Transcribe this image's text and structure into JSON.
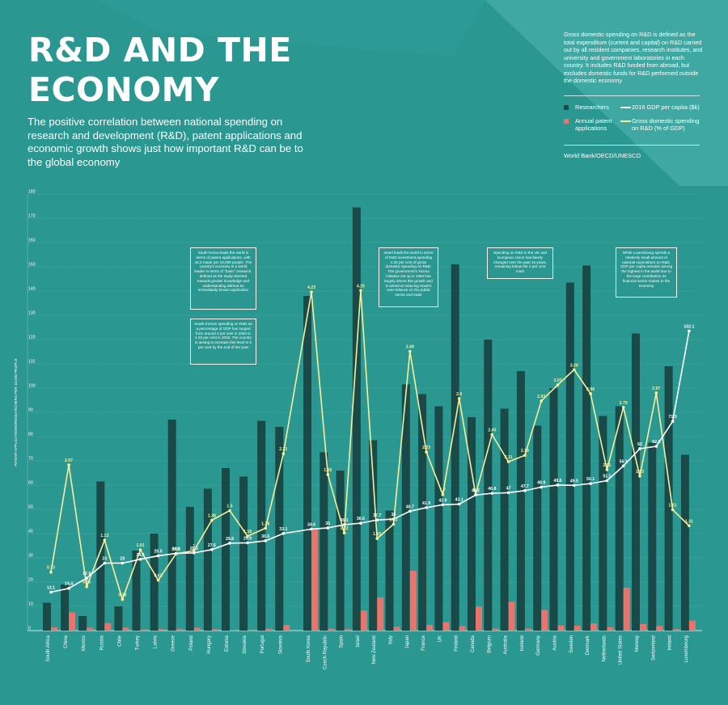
{
  "title": "R&D AND THE ECONOMY",
  "subtitle": "The positive correlation between national spending on research and development (R&D), patent applications and economic growth shows just how important R&D can be to the global economy",
  "definition": "Gross domestic spending on R&D is defined as the total expenditure (current and capital) on R&D carried out by all resident companies, research institutes, and university and government laboratories in each country. It includes R&D funded from abroad, but excludes domestic funds for R&D performed outside the domestic economy",
  "legend": {
    "researchers": "Researchers",
    "patents": "Annual patent applications",
    "gdp": "2016 GDP per capita ($k)",
    "rd": "Gross domestic spending on R&D (% of GDP)"
  },
  "source": "World Bank/OECD/UNESCO",
  "annotations": {
    "south_korea_patents": "South Korea leads the world in terms of patent applications, with 42.2 made per 10,000 people. The country's economy is a world leader in terms of \"basic\" research, defined as the study directed towards greater knowledge and understanding without an immediately known application",
    "south_korea_spending": "South Korean spending on R&D as a percentage of GDP has surged from around 2 per cent in 2000 to 4.23 per cent in 2015. The country is aiming to increase this level to 5 per cent by the end of the year",
    "israel": "Israel leads the world in terms of R&D investment,spending 4.25 per cent of gross domestic spending on R&D. The government's Yozma initiative set up in 1993 has largely driven this growth and is aimed at reducing Israel's over-reliance on the public sector and trade",
    "uk_eu": "Spending on R&D in the UK and European Union has barely changed over the past 15 years, remaining below the 2 per cent mark",
    "luxembourg": "While Luxembourg spends a relatively small amount of national expenditure on R&D, GDP per capita remains among the highest in the world due to the large contribution its financial sector makes to the economy"
  },
  "colors": {
    "background": "#2a9791",
    "researchers": "#1a4a47",
    "patents": "#e8746d",
    "gdp": "#ffffff",
    "rd": "#f7ef9b"
  },
  "chart_data": {
    "type": "bar",
    "ylabel": "PATENT APPLICATIONS/RESEARCHERS PER 10,000 PEOPLE",
    "ylim": [
      0,
      180
    ],
    "yticks": [
      0,
      10,
      20,
      30,
      40,
      50,
      60,
      70,
      80,
      90,
      100,
      110,
      120,
      130,
      140,
      150,
      160,
      170,
      180
    ],
    "categories": [
      "South Africa",
      "China",
      "Mexico",
      "Russia",
      "Chile",
      "Turkey",
      "Latvia",
      "Greece",
      "Poland",
      "Hungary",
      "Estonia",
      "Slovakia",
      "Portugal",
      "Slovenia",
      "South Korea",
      "Czech Republic",
      "Spain",
      "Israel",
      "New Zealand",
      "Italy",
      "Japan",
      "France",
      "UK",
      "Finland",
      "Canada",
      "Belgium",
      "Australia",
      "Iceland",
      "Germany",
      "Austria",
      "Sweden",
      "Denmark",
      "Netherlands",
      "United States",
      "Norway",
      "Switzerland",
      "Ireland",
      "Luxembourg"
    ],
    "series": [
      {
        "name": "Researchers",
        "values": [
          11.5,
          19,
          6,
          61.5,
          10,
          33,
          40,
          87,
          51,
          58.5,
          67,
          63.5,
          86.5,
          84,
          138,
          73.5,
          66,
          174.5,
          78.5,
          49.5,
          101.5,
          97.5,
          92.5,
          151,
          88,
          120,
          91.5,
          107,
          84.5,
          100,
          143.5,
          150.5,
          88.5,
          92.5,
          122.5,
          77.5,
          109,
          72.5
        ]
      },
      {
        "name": "Annual patent applications",
        "values": [
          1.3,
          7.5,
          1.2,
          3.1,
          1.2,
          0.5,
          0.7,
          0.7,
          1.2,
          0.6,
          0.3,
          0.4,
          0.8,
          2.3,
          42.2,
          0.8,
          0.6,
          8.3,
          13.7,
          1.6,
          24.7,
          2.3,
          3.5,
          1.8,
          9.8,
          0.9,
          11.9,
          0.8,
          8.5,
          2.1,
          2,
          3,
          1.4,
          17.7,
          2.7,
          1.9,
          0.6,
          4.1
        ]
      },
      {
        "name": "2016 GDP per capita ($k)",
        "values": [
          13.1,
          14.4,
          17.9,
          23,
          23,
          24.3,
          25.5,
          26.3,
          26.5,
          27.6,
          29.8,
          29.9,
          30.6,
          33.1,
          34.6,
          35,
          36.1,
          36.6,
          37.7,
          38,
          40.7,
          41.9,
          42.9,
          43.1,
          46.2,
          46.8,
          47,
          47.7,
          48.9,
          49.6,
          49.5,
          50.1,
          51.1,
          56.1,
          62,
          62.8,
          71.3,
          102.1
        ]
      },
      {
        "name": "Gross domestic spending on R&D (% of GDP)",
        "values": [
          0.73,
          2.07,
          0.55,
          1.13,
          0.39,
          1.01,
          0.63,
          0.96,
          1,
          1.38,
          1.5,
          1.18,
          1.28,
          2.21,
          4.23,
          1.95,
          1.22,
          4.25,
          1.15,
          1.33,
          3.49,
          2.23,
          1.7,
          2.9,
          1.7,
          2.45,
          2.11,
          2.19,
          2.87,
          3.07,
          3.26,
          2.96,
          2.01,
          2.79,
          1.93,
          2.97,
          1.51,
          1.31
        ]
      }
    ],
    "series_labels": {
      "gdp": [
        "13.1",
        "14.4",
        "17.9",
        "23",
        "23",
        "24.3",
        "25.5",
        "26.3",
        "26.5",
        "27.6",
        "29.8",
        "29.9",
        "30.6",
        "33.1",
        "34.6",
        "35",
        "36.1",
        "36.6",
        "37.7",
        "38",
        "40.7",
        "41.9",
        "42.9",
        "43.1",
        "46.2",
        "46.8",
        "47",
        "47.7",
        "48.9",
        "49.6",
        "49.5",
        "50.1",
        "51.1",
        "56.1",
        "62",
        "62.8",
        "71.3",
        "102.1"
      ],
      "rd": [
        "0.73",
        "2.07",
        "0.55",
        "1.13",
        "0.39",
        "1.01",
        "0.63",
        "0.96",
        "1",
        "1.38",
        "1.5",
        "1.18",
        "1.28",
        "2.21",
        "4.23",
        "1.95",
        "1.22",
        "4.25",
        "1.15",
        "1.33",
        "3.49",
        "2.23",
        "1.7",
        "2.9",
        "1.7",
        "2.45",
        "2.11",
        "2.19",
        "2.87",
        "3.07",
        "3.26",
        "2.96",
        "2.01",
        "2.79",
        "1.93",
        "2.97",
        "1.51",
        "1.31"
      ]
    }
  }
}
